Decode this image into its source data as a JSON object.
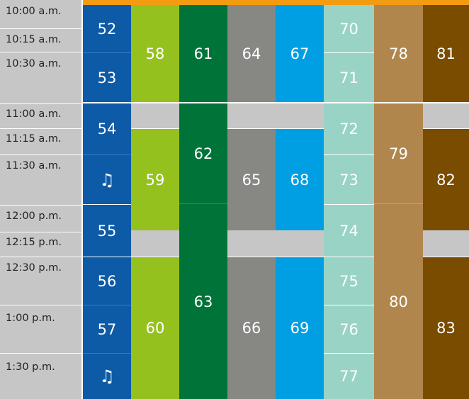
{
  "colors": {
    "accent_bar": "#f39c12",
    "time_column": "#c6c6c6",
    "break_gray": "#c6c6c6",
    "col_blue_dark": "#0d5aa7",
    "col_lime": "#95c11f",
    "col_green": "#007338",
    "col_gray": "#878784",
    "col_sky": "#009fe3",
    "col_mint": "#98d3c6",
    "col_tan": "#b1864c",
    "col_brown": "#7a4c00"
  },
  "times": [
    "10:00 a.m.",
    "10:15 a.m.",
    "10:30 a.m.",
    "11:00 a.m.",
    "11:15 a.m.",
    "11:30 a.m.",
    "12:00 p.m.",
    "12:15 p.m.",
    "12:30 p.m.",
    "1:00 p.m.",
    "1:30 p.m."
  ],
  "blocks": {
    "c1": [
      "52",
      "53",
      "54",
      "music-note-icon",
      "55",
      "56",
      "57",
      "music-note-icon"
    ],
    "c2": [
      "58",
      "59",
      "60"
    ],
    "c3": [
      "61",
      "62",
      "63"
    ],
    "c4": [
      "64",
      "65",
      "66"
    ],
    "c5": [
      "67",
      "68",
      "69"
    ],
    "c6": [
      "70",
      "71",
      "72",
      "73",
      "74",
      "75",
      "76",
      "77"
    ],
    "c7": [
      "78",
      "79",
      "80"
    ],
    "c8": [
      "81",
      "82",
      "83"
    ]
  },
  "music_note": "♫"
}
